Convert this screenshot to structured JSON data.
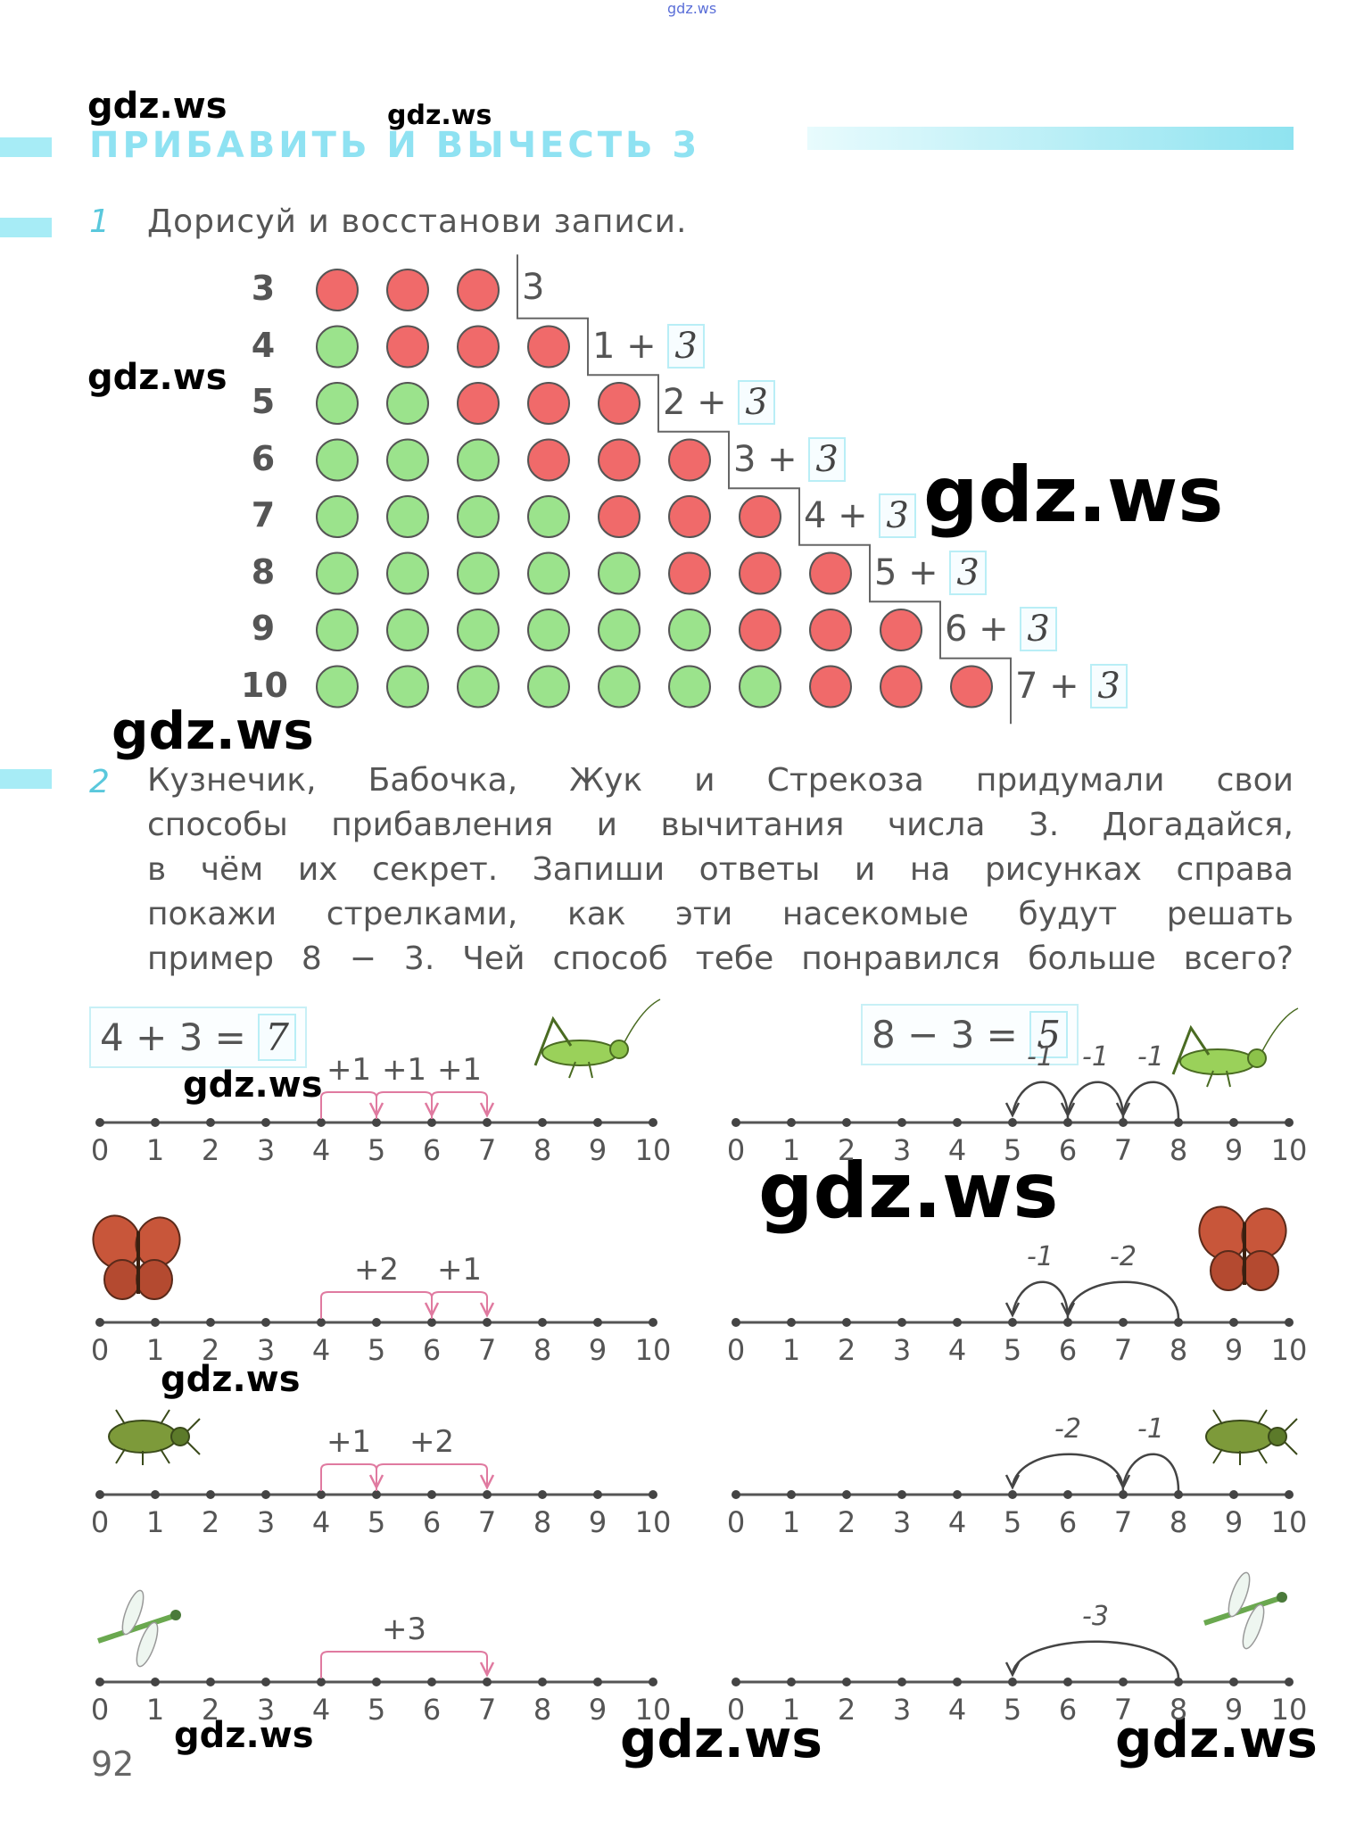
{
  "watermark": "gdz.ws",
  "page_number": "92",
  "title": "ПРИБАВИТЬ И ВЫЧЕСТЬ 3",
  "task1": {
    "number": "1",
    "text": "Дорисуй и восстанови записи.",
    "rows": [
      {
        "n": "3",
        "green": 0,
        "red": 3,
        "expr": "3",
        "answer": ""
      },
      {
        "n": "4",
        "green": 1,
        "red": 3,
        "expr": "1 +",
        "answer": "3"
      },
      {
        "n": "5",
        "green": 2,
        "red": 3,
        "expr": "2 +",
        "answer": "3"
      },
      {
        "n": "6",
        "green": 3,
        "red": 3,
        "expr": "3 +",
        "answer": "3"
      },
      {
        "n": "7",
        "green": 4,
        "red": 3,
        "expr": "4 +",
        "answer": "3"
      },
      {
        "n": "8",
        "green": 5,
        "red": 3,
        "expr": "5 +",
        "answer": "3"
      },
      {
        "n": "9",
        "green": 6,
        "red": 3,
        "expr": "6 +",
        "answer": "3"
      },
      {
        "n": "10",
        "green": 7,
        "red": 3,
        "expr": "7 +",
        "answer": "3"
      }
    ]
  },
  "task2": {
    "number": "2",
    "lines": [
      "Кузнечик, Бабочка, Жук и Стрекоза придумали свои",
      "способы прибавления и вычитания числа 3. Догадайся,",
      "в чём их секрет. Запиши ответы и на рисунках справа",
      "покажи стрелками, как эти насекомые будут решать",
      "пример 8 − 3. Чей способ тебе понравился больше всего?"
    ],
    "left_equation": {
      "expr": "4 + 3 =",
      "answer": "7"
    },
    "right_equation": {
      "expr": "8 − 3 =",
      "answer": "5"
    },
    "ticks": [
      "0",
      "1",
      "2",
      "3",
      "4",
      "5",
      "6",
      "7",
      "8",
      "9",
      "10"
    ],
    "left_panels": [
      {
        "insect": "grasshopper",
        "steps": [
          {
            "from": 4,
            "to": 5,
            "label": "+1"
          },
          {
            "from": 5,
            "to": 6,
            "label": "+1"
          },
          {
            "from": 6,
            "to": 7,
            "label": "+1"
          }
        ]
      },
      {
        "insect": "butterfly",
        "steps": [
          {
            "from": 4,
            "to": 6,
            "label": "+2"
          },
          {
            "from": 6,
            "to": 7,
            "label": "+1"
          }
        ]
      },
      {
        "insect": "beetle",
        "steps": [
          {
            "from": 4,
            "to": 5,
            "label": "+1"
          },
          {
            "from": 5,
            "to": 7,
            "label": "+2"
          }
        ]
      },
      {
        "insect": "dragonfly",
        "steps": [
          {
            "from": 4,
            "to": 7,
            "label": "+3"
          }
        ]
      }
    ],
    "right_panels": [
      {
        "insect": "grasshopper",
        "steps": [
          {
            "from": 8,
            "to": 7,
            "label": "-1"
          },
          {
            "from": 7,
            "to": 6,
            "label": "-1"
          },
          {
            "from": 6,
            "to": 5,
            "label": "-1"
          }
        ]
      },
      {
        "insect": "butterfly",
        "steps": [
          {
            "from": 8,
            "to": 6,
            "label": "-2"
          },
          {
            "from": 6,
            "to": 5,
            "label": "-1"
          }
        ]
      },
      {
        "insect": "beetle",
        "steps": [
          {
            "from": 8,
            "to": 7,
            "label": "-1"
          },
          {
            "from": 7,
            "to": 5,
            "label": "-2"
          }
        ]
      },
      {
        "insect": "dragonfly",
        "steps": [
          {
            "from": 8,
            "to": 5,
            "label": "-3"
          }
        ]
      }
    ]
  },
  "colors": {
    "red": "#f06a6a",
    "green": "#9be38c",
    "title": "#8fe2f2",
    "accent": "#5ac8dc"
  }
}
